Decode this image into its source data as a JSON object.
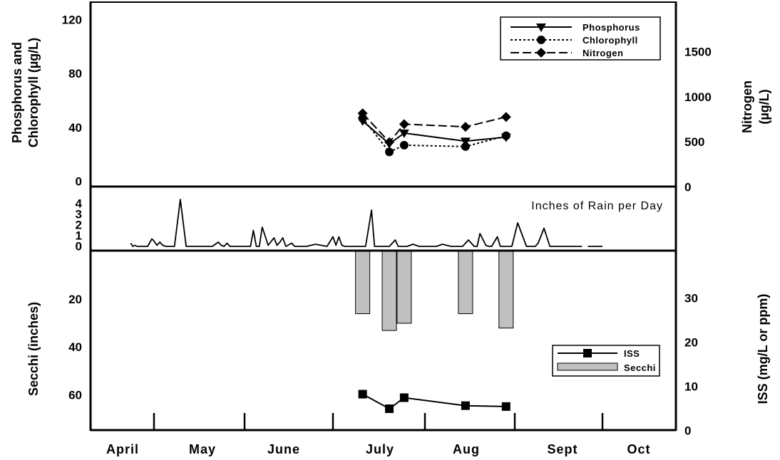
{
  "chart_data": [
    {
      "type": "line",
      "ylabel_left": [
        "Phosphorus and",
        "Chlorophyll (µg/L)"
      ],
      "ylabel_right": [
        "Nitrogen",
        "(µg/L)"
      ],
      "yticks_left": [
        "0",
        "40",
        "80",
        "120"
      ],
      "ylim_left": [
        0,
        125
      ],
      "yticks_right": [
        "0",
        "500",
        "1000",
        "1500"
      ],
      "ylim_right": [
        0,
        2000
      ],
      "series": [
        {
          "name": "Phosphorus",
          "axis": "left",
          "marker": "triangle-down",
          "dash": "solid",
          "x": [
            "2000-07-11",
            "2000-07-20",
            "2000-07-25",
            "2000-08-15",
            "2000-08-29"
          ],
          "values": [
            45,
            28,
            36,
            30,
            33
          ]
        },
        {
          "name": "Chlorophyll",
          "axis": "left",
          "marker": "circle",
          "dash": "dotted",
          "x": [
            "2000-07-11",
            "2000-07-20",
            "2000-07-25",
            "2000-08-15",
            "2000-08-29"
          ],
          "values": [
            47,
            22,
            27,
            26,
            34
          ]
        },
        {
          "name": "Nitrogen",
          "axis": "right",
          "marker": "diamond",
          "dash": "dashed",
          "x": [
            "2000-07-11",
            "2000-07-20",
            "2000-07-25",
            "2000-08-15",
            "2000-08-29"
          ],
          "values": [
            820,
            500,
            700,
            670,
            780
          ]
        }
      ],
      "legend_position": "top-right"
    },
    {
      "type": "line",
      "annotation": "Inches of Rain per Day",
      "yticks": [
        "0",
        "1",
        "2",
        "3",
        "4"
      ],
      "ylim": [
        0,
        4.6
      ],
      "series": [
        {
          "x": [
            "2000-04-20",
            "2000-04-21",
            "2000-04-22",
            "2000-04-23",
            "2000-04-25",
            "2000-04-28",
            "2000-04-30",
            "2000-05-01",
            "2000-05-02",
            "2000-05-03",
            "2000-05-04",
            "2000-05-05",
            "2000-05-06",
            "2000-05-08",
            "2000-05-10",
            "2000-05-12",
            "2000-05-13",
            "2000-05-14",
            "2000-05-16",
            "2000-05-18",
            "2000-05-21",
            "2000-05-23",
            "2000-05-24",
            "2000-05-25",
            "2000-05-26",
            "2000-05-27",
            "2000-05-28",
            "2000-05-30",
            "2000-06-01",
            "2000-06-03",
            "2000-06-04",
            "2000-06-05",
            "2000-06-06",
            "2000-06-07",
            "2000-06-09",
            "2000-06-11",
            "2000-06-12",
            "2000-06-13",
            "2000-06-14",
            "2000-06-15",
            "2000-06-17",
            "2000-06-18",
            "2000-06-19",
            "2000-06-20",
            "2000-06-22",
            "2000-06-25",
            "2000-06-27",
            "2000-06-29",
            "2000-07-01",
            "2000-07-02",
            "2000-07-03",
            "2000-07-04",
            "2000-07-05",
            "2000-07-06",
            "2000-07-09",
            "2000-07-12",
            "2000-07-14",
            "2000-07-15",
            "2000-07-16",
            "2000-07-18",
            "2000-07-20",
            "2000-07-22",
            "2000-07-23",
            "2000-07-24",
            "2000-07-26",
            "2000-07-28",
            "2000-07-30",
            "2000-07-31",
            "2000-08-01",
            "2000-08-03",
            "2000-08-05",
            "2000-08-07",
            "2000-08-10",
            "2000-08-14",
            "2000-08-16",
            "2000-08-18",
            "2000-08-19",
            "2000-08-20",
            "2000-08-22",
            "2000-08-23",
            "2000-08-24",
            "2000-08-26",
            "2000-08-27",
            "2000-08-28",
            "2000-08-29",
            "2000-08-31",
            "2000-09-02",
            "2000-09-05",
            "2000-09-07",
            "2000-09-08",
            "2000-09-09",
            "2000-09-11",
            "2000-09-13",
            "2000-09-15",
            "2000-09-16",
            "2000-09-17",
            "2000-09-18",
            "2000-09-19",
            "2000-09-20",
            "2000-09-22",
            "2000-09-24"
          ],
          "values": [
            0.3,
            0,
            0.1,
            0,
            0,
            0,
            0.7,
            0.5,
            0.1,
            0.4,
            0.1,
            0,
            0,
            0,
            4.4,
            0,
            0,
            0,
            0,
            0,
            0,
            0.4,
            0.1,
            0,
            0.3,
            0,
            0,
            0,
            0,
            0,
            1.5,
            0,
            0,
            1.8,
            0.1,
            0.8,
            0.1,
            0.4,
            0.8,
            0,
            0.3,
            0,
            0,
            0,
            0,
            0.2,
            0.1,
            0,
            0.9,
            0.1,
            0.9,
            0.1,
            0,
            0,
            0,
            0,
            3.4,
            0,
            0,
            0,
            0,
            0.6,
            0,
            0,
            0,
            0.2,
            0,
            0,
            0,
            0,
            0,
            0.2,
            0,
            0,
            0.6,
            0,
            0,
            1.2,
            0.1,
            0,
            0,
            0.9,
            0,
            0,
            0,
            0,
            2.2,
            0,
            0,
            0,
            0.3,
            1.7,
            0,
            0,
            0,
            0,
            0,
            0,
            0,
            0,
            0
          ]
        }
      ]
    },
    {
      "type": "bar+line",
      "ylabel_left": "Secchi (inches)",
      "ylabel_right": "ISS (mg/L or ppm)",
      "yticks_left": [
        "20",
        "40",
        "60"
      ],
      "ylim_left_inverted": [
        0,
        75
      ],
      "yticks_right": [
        "0",
        "10",
        "20",
        "30"
      ],
      "ylim_right": [
        0,
        40
      ],
      "series": [
        {
          "name": "ISS",
          "type": "line",
          "axis": "right",
          "marker": "square",
          "x": [
            "2000-07-11",
            "2000-07-20",
            "2000-07-25",
            "2000-08-15",
            "2000-08-29"
          ],
          "values": [
            8.3,
            5,
            7.5,
            5.7,
            5.5
          ]
        },
        {
          "name": "Secchi",
          "type": "bar",
          "axis": "left",
          "x": [
            "2000-07-11",
            "2000-07-20",
            "2000-07-25",
            "2000-08-15",
            "2000-08-29"
          ],
          "values": [
            26,
            33,
            30,
            26,
            32
          ]
        }
      ],
      "legend_position": "right-middle"
    }
  ],
  "x_axis": {
    "labels": [
      "April",
      "May",
      "June",
      "July",
      "Aug",
      "Sept",
      "Oct"
    ]
  }
}
